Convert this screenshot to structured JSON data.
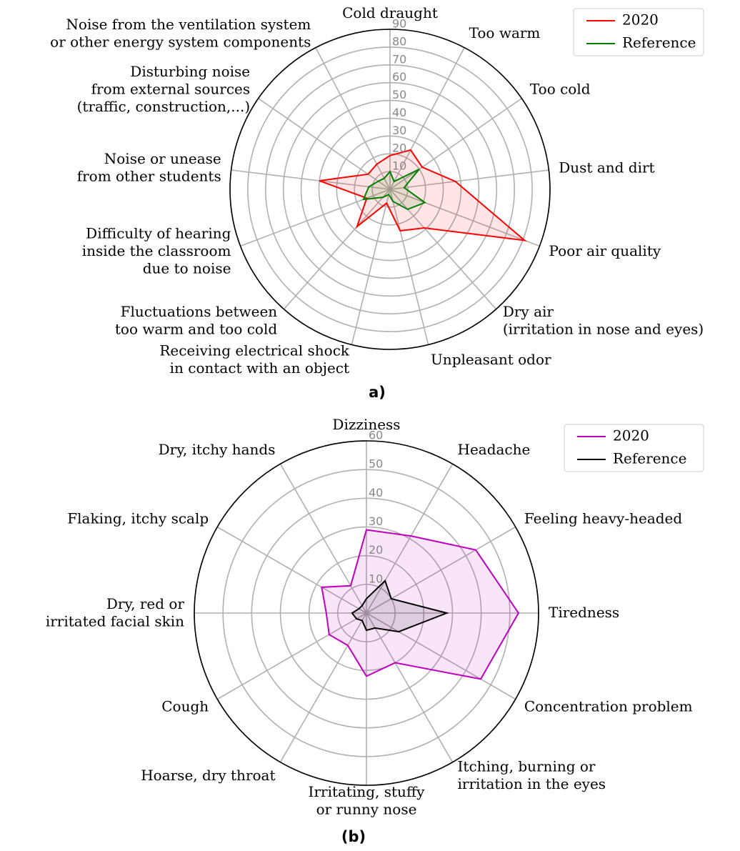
{
  "chart_data": [
    {
      "type": "radar",
      "caption": "a)",
      "categories": [
        "Cold draught",
        "Too warm",
        "Too cold",
        "Dust and dirt",
        "Poor air quality",
        "Dry air\n(irritation in nose and eyes)",
        "Unpleasant odor",
        "Receiving electrical shock\nin contact with an object",
        "Fluctuations between\ntoo warm and too cold",
        "Difficulty of hearing\ninside the classroom\ndue to noise",
        "Noise or unease\nfrom other students",
        "Disturbing noise\nfrom external sources\n(traffic, construction,...)",
        "Noise from the ventilation system\nor other energy system components"
      ],
      "rlim": [
        0,
        90
      ],
      "rticks": [
        10,
        20,
        30,
        40,
        50,
        60,
        70,
        80,
        90
      ],
      "grid": true,
      "legend": "upper right",
      "series": [
        {
          "name": "2020",
          "color": "#ff0000",
          "values": [
            19,
            25,
            22,
            37,
            81,
            29,
            24,
            8,
            28,
            14,
            40,
            15,
            16
          ]
        },
        {
          "name": "Reference",
          "color": "#008000",
          "values": [
            10,
            5,
            20,
            8,
            21,
            15,
            7,
            3,
            6,
            16,
            12,
            8,
            7
          ]
        }
      ]
    },
    {
      "type": "radar",
      "caption": "(b)",
      "categories": [
        "Dizziness",
        "Headache",
        "Feeling heavy-headed",
        "Tiredness",
        "Concentration problem",
        "Itching, burning or\nirritation in the eyes",
        "Irritating, stuffy\nor runny nose",
        "Hoarse, dry throat",
        "Cough",
        "Dry, red or\nirritated facial skin",
        "Flaking, itchy scalp",
        "Dry, itchy hands"
      ],
      "rlim": [
        0,
        60
      ],
      "rticks": [
        10,
        20,
        30,
        40,
        50,
        60
      ],
      "grid": true,
      "legend": "upper right",
      "series": [
        {
          "name": "2020",
          "color": "#bf00bf",
          "values": [
            29,
            31,
            44,
            53,
            46,
            20,
            22,
            13,
            15,
            14,
            18,
            11
          ]
        },
        {
          "name": "Reference",
          "color": "#000000",
          "values": [
            5,
            13,
            10,
            28,
            13,
            6,
            6,
            3,
            4,
            5,
            3,
            3
          ]
        }
      ]
    }
  ]
}
